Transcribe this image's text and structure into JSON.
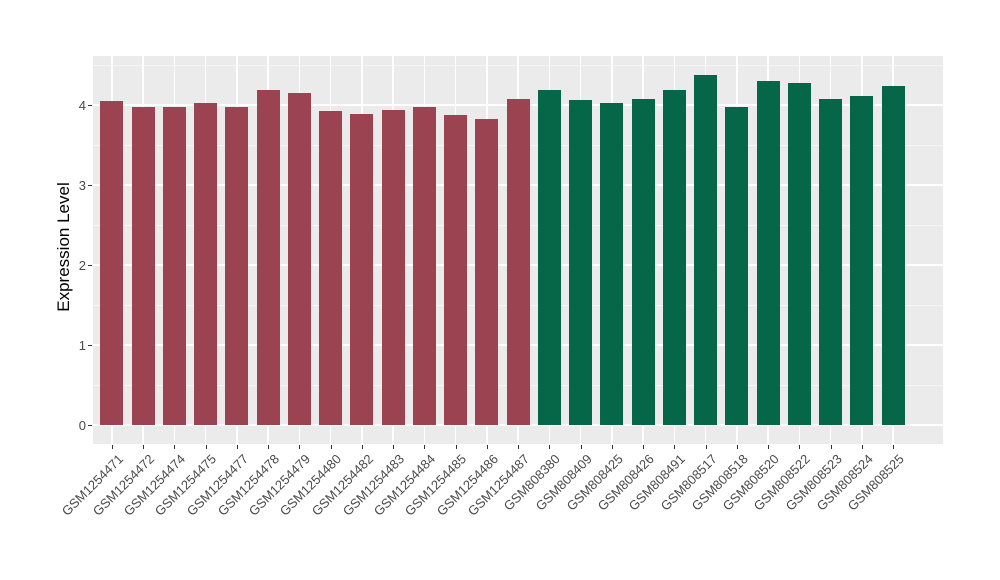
{
  "figure": {
    "background": "#FFFFFF",
    "panel_background": "#EBEBEB",
    "grid_major_color": "#FFFFFF",
    "grid_minor_color": "#F6F6F6",
    "axis_text_color": "#4A4A4A",
    "tick_color": "#333333"
  },
  "chart_data": {
    "type": "bar",
    "title": "",
    "xlabel": "",
    "ylabel": "Expression Level",
    "ylim": [
      0,
      4.6
    ],
    "yticks": [
      "0",
      "1",
      "2",
      "3",
      "4"
    ],
    "grid": "major white + minor white on gray panel (ggplot style)",
    "legend_position": "none",
    "categories": [
      "GSM1254471",
      "GSM1254472",
      "GSM1254474",
      "GSM1254475",
      "GSM1254477",
      "GSM1254478",
      "GSM1254479",
      "GSM1254480",
      "GSM1254482",
      "GSM1254483",
      "GSM1254484",
      "GSM1254485",
      "GSM1254486",
      "GSM1254487",
      "GSM808380",
      "GSM808409",
      "GSM808425",
      "GSM808426",
      "GSM808491",
      "GSM808517",
      "GSM808518",
      "GSM808520",
      "GSM808522",
      "GSM808523",
      "GSM808524",
      "GSM808525"
    ],
    "values": [
      4.05,
      3.98,
      3.98,
      4.02,
      3.98,
      4.19,
      4.15,
      3.92,
      3.89,
      3.94,
      3.97,
      3.87,
      3.82,
      4.08,
      4.19,
      4.06,
      4.03,
      4.08,
      4.19,
      4.38,
      3.98,
      4.3,
      4.27,
      4.08,
      4.11,
      4.24
    ],
    "bar_groups": [
      "maroon",
      "maroon",
      "maroon",
      "maroon",
      "maroon",
      "maroon",
      "maroon",
      "maroon",
      "maroon",
      "maroon",
      "maroon",
      "maroon",
      "maroon",
      "maroon",
      "green",
      "green",
      "green",
      "green",
      "green",
      "green",
      "green",
      "green",
      "green",
      "green",
      "green",
      "green"
    ],
    "group_colors": {
      "maroon": "#9B4351",
      "green": "#056648"
    }
  }
}
